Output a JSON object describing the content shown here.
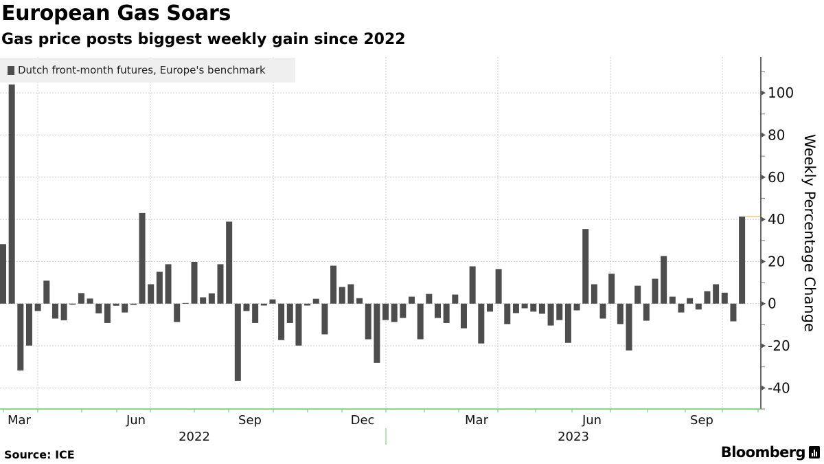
{
  "title": "European Gas Soars",
  "subtitle": "Gas price posts biggest weekly gain since 2022",
  "source": "Source: ICE",
  "brand": "Bloomberg",
  "colors": {
    "bar": "#4d4d4d",
    "axis_x": "#5ad15a",
    "last_value_marker": "#f0a830",
    "grid": "#c8c8c8"
  },
  "chart_data": {
    "type": "bar",
    "title": "European Gas Soars",
    "subtitle": "Gas price posts biggest weekly gain since 2022",
    "ylabel": "Weekly Percentage Change",
    "xlabel": "",
    "ylim": [
      -50,
      117
    ],
    "yticks": [
      -40,
      -20,
      0,
      20,
      40,
      60,
      80,
      100
    ],
    "ytick_labels": [
      "-40",
      "-20",
      "0",
      "20",
      "40",
      "60",
      "80",
      "100"
    ],
    "xtick_labels": [
      "Mar",
      "Jun",
      "Sep",
      "Dec",
      "Mar",
      "Jun",
      "Sep"
    ],
    "year_labels": [
      "2022",
      "2023"
    ],
    "grid": true,
    "legend": {
      "placement": "top-left",
      "entries": [
        "Dutch front-month futures, Europe's benchmark"
      ]
    },
    "series": [
      {
        "name": "Dutch front-month futures, Europe's benchmark",
        "values": [
          28.2,
          104,
          -31.7,
          -19.9,
          -3.5,
          10.9,
          -7.1,
          -7.9,
          -0.5,
          5.0,
          2.4,
          -4.6,
          -9.2,
          -1.0,
          -4.2,
          -0.6,
          43.0,
          9.2,
          15.1,
          18.7,
          -8.7,
          0.3,
          19.8,
          3.0,
          4.9,
          18.7,
          38.9,
          -36.6,
          -3.5,
          -9.2,
          -0.9,
          2.0,
          -17.3,
          -9.2,
          -19.9,
          -0.9,
          2.3,
          -14.6,
          18.0,
          7.9,
          9.2,
          2.6,
          -16.9,
          -28.1,
          -7.8,
          -8.7,
          -6.8,
          3.3,
          -16.9,
          4.6,
          -6.8,
          -9.2,
          4.3,
          -11.7,
          17.7,
          -18.9,
          -3.8,
          16.4,
          -9.7,
          -4.5,
          -2.2,
          -3.8,
          -4.8,
          -10.4,
          -7.8,
          -18.6,
          -3.2,
          35.4,
          9.2,
          -7.1,
          14.2,
          -9.7,
          -22.2,
          8.5,
          -8.1,
          11.8,
          22.6,
          3.3,
          -4.2,
          2.6,
          -2.8,
          5.9,
          9.2,
          5.2,
          -8.4,
          41.3
        ]
      }
    ],
    "last_value": 41.3
  }
}
